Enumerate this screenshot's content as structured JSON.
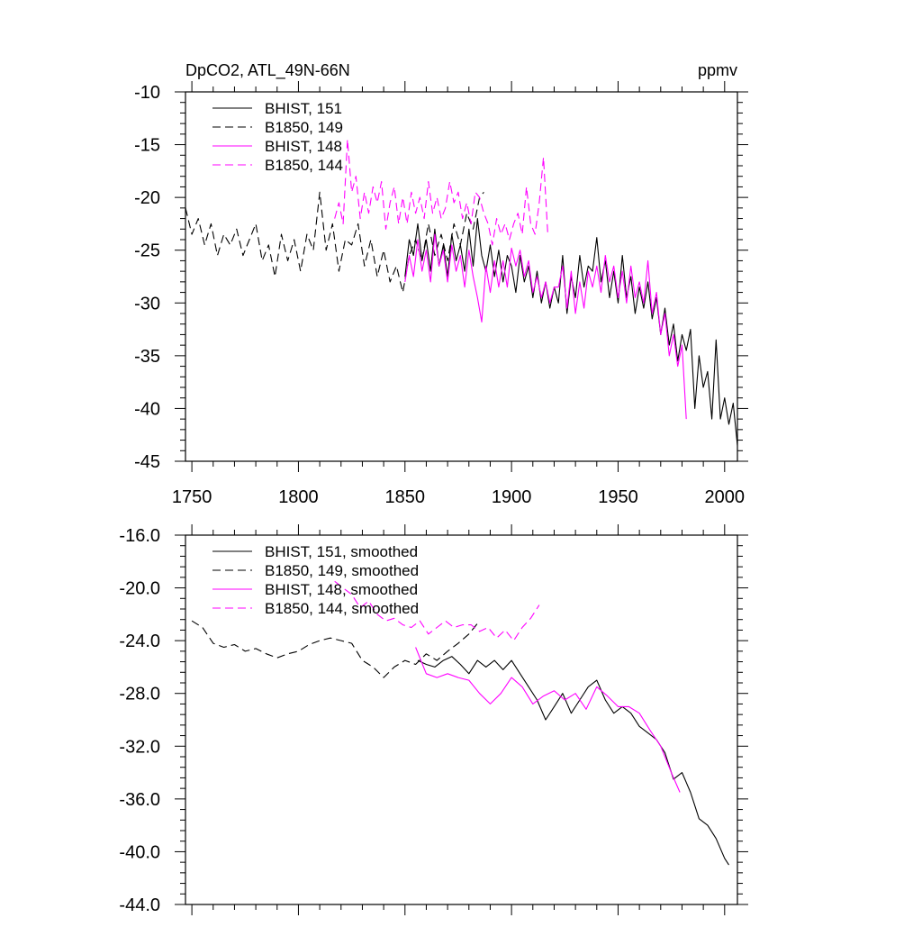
{
  "chart_data": [
    {
      "type": "line",
      "title": "DpCO2, ATL_49N-66N",
      "units": "ppmv",
      "xlim": [
        1747,
        2006
      ],
      "ylim": [
        -45,
        -10
      ],
      "xticks": [
        1750,
        1800,
        1850,
        1900,
        1950,
        2000
      ],
      "xtick_labels": [
        "1750",
        "1800",
        "1850",
        "1900",
        "1950",
        "2000"
      ],
      "yticks": [
        -10,
        -15,
        -20,
        -25,
        -30,
        -35,
        -40,
        -45
      ],
      "ytick_labels": [
        "-10",
        "-15",
        "-20",
        "-25",
        "-30",
        "-35",
        "-40",
        "-45"
      ],
      "legend_placement": "top-left",
      "series": [
        {
          "name": "BHIST, 151",
          "color": "#000000",
          "dash": "solid",
          "x": [
            1850,
            1852,
            1854,
            1856,
            1858,
            1860,
            1862,
            1864,
            1866,
            1868,
            1870,
            1872,
            1874,
            1876,
            1878,
            1880,
            1882,
            1884,
            1886,
            1888,
            1890,
            1892,
            1894,
            1896,
            1898,
            1900,
            1902,
            1904,
            1906,
            1908,
            1910,
            1912,
            1914,
            1916,
            1918,
            1920,
            1922,
            1924,
            1926,
            1928,
            1930,
            1932,
            1934,
            1936,
            1938,
            1940,
            1942,
            1944,
            1946,
            1948,
            1950,
            1952,
            1954,
            1956,
            1958,
            1960,
            1962,
            1964,
            1966,
            1968,
            1970,
            1972,
            1974,
            1976,
            1978,
            1980,
            1982,
            1984,
            1986,
            1988,
            1990,
            1992,
            1994,
            1996,
            1998,
            2000,
            2002,
            2004,
            2006
          ],
          "values": [
            -27.5,
            -24.0,
            -25.5,
            -22.5,
            -26.0,
            -24.0,
            -27.0,
            -23.0,
            -26.5,
            -24.5,
            -27.5,
            -23.5,
            -26.0,
            -24.5,
            -27.0,
            -23.0,
            -26.5,
            -22.0,
            -25.5,
            -27.0,
            -24.5,
            -27.5,
            -25.0,
            -28.0,
            -25.5,
            -26.5,
            -29.0,
            -25.5,
            -28.0,
            -26.5,
            -29.5,
            -27.0,
            -30.0,
            -28.0,
            -30.5,
            -28.5,
            -30.0,
            -25.5,
            -31.0,
            -27.5,
            -29.5,
            -25.5,
            -28.5,
            -26.5,
            -27.0,
            -23.8,
            -28.0,
            -26.0,
            -29.5,
            -27.0,
            -30.0,
            -25.5,
            -29.5,
            -27.5,
            -31.0,
            -28.5,
            -30.5,
            -28.0,
            -31.5,
            -29.5,
            -33.0,
            -30.5,
            -34.0,
            -32.0,
            -35.5,
            -33.0,
            -34.5,
            -32.5,
            -40.0,
            -35.0,
            -38.0,
            -36.5,
            -41.0,
            -33.5,
            -41.0,
            -39.0,
            -41.5,
            -39.5,
            -43.5
          ]
        },
        {
          "name": "B1850, 149",
          "color": "#000000",
          "dash": "dashed",
          "x": [
            1747,
            1750,
            1753,
            1756,
            1759,
            1762,
            1765,
            1768,
            1771,
            1774,
            1777,
            1780,
            1783,
            1786,
            1789,
            1792,
            1795,
            1798,
            1801,
            1804,
            1807,
            1810,
            1813,
            1816,
            1819,
            1822,
            1825,
            1828,
            1831,
            1834,
            1837,
            1840,
            1843,
            1846,
            1849,
            1852,
            1855,
            1858,
            1861,
            1864,
            1867,
            1870,
            1873,
            1876,
            1879,
            1882,
            1885,
            1887
          ],
          "values": [
            -21.0,
            -23.5,
            -22.0,
            -24.5,
            -22.5,
            -25.5,
            -23.5,
            -24.5,
            -23.0,
            -25.5,
            -24.0,
            -22.5,
            -26.0,
            -24.5,
            -27.5,
            -23.5,
            -26.0,
            -24.0,
            -27.0,
            -23.5,
            -25.0,
            -19.5,
            -25.0,
            -22.5,
            -27.0,
            -24.0,
            -24.5,
            -22.5,
            -26.5,
            -24.0,
            -27.5,
            -25.0,
            -28.0,
            -26.5,
            -29.0,
            -25.5,
            -24.0,
            -26.0,
            -22.5,
            -25.5,
            -23.5,
            -26.0,
            -22.5,
            -24.5,
            -21.5,
            -23.0,
            -20.0,
            -19.5
          ]
        },
        {
          "name": "BHIST, 148",
          "color": "#ff00ff",
          "dash": "solid",
          "x": [
            1850,
            1852,
            1854,
            1856,
            1858,
            1860,
            1862,
            1864,
            1866,
            1868,
            1870,
            1872,
            1874,
            1876,
            1878,
            1880,
            1882,
            1884,
            1886,
            1888,
            1890,
            1892,
            1894,
            1896,
            1898,
            1900,
            1902,
            1904,
            1906,
            1908,
            1910,
            1912,
            1914,
            1916,
            1918,
            1920,
            1922,
            1924,
            1926,
            1928,
            1930,
            1932,
            1934,
            1936,
            1938,
            1940,
            1942,
            1944,
            1946,
            1948,
            1950,
            1952,
            1954,
            1956,
            1958,
            1960,
            1962,
            1964,
            1966,
            1968,
            1970,
            1972,
            1974,
            1976,
            1978,
            1980,
            1982
          ],
          "values": [
            -28.0,
            -25.5,
            -27.5,
            -24.0,
            -27.0,
            -25.0,
            -28.0,
            -23.5,
            -26.5,
            -25.0,
            -28.0,
            -24.5,
            -27.0,
            -25.5,
            -28.5,
            -25.0,
            -27.5,
            -29.5,
            -31.8,
            -26.5,
            -29.0,
            -26.0,
            -28.5,
            -26.0,
            -28.5,
            -24.8,
            -26.5,
            -25.0,
            -27.5,
            -26.0,
            -29.0,
            -27.5,
            -29.5,
            -28.0,
            -30.0,
            -28.5,
            -28.5,
            -26.5,
            -30.5,
            -27.0,
            -31.0,
            -28.0,
            -30.5,
            -27.0,
            -28.5,
            -26.5,
            -29.0,
            -25.5,
            -28.0,
            -26.5,
            -29.5,
            -27.0,
            -30.0,
            -26.5,
            -29.5,
            -28.0,
            -30.0,
            -26.0,
            -31.0,
            -29.0,
            -33.0,
            -31.0,
            -35.0,
            -33.0,
            -36.0,
            -34.0,
            -41.0
          ]
        },
        {
          "name": "B1850, 144",
          "color": "#ff00ff",
          "dash": "dashed",
          "x": [
            1817,
            1819,
            1821,
            1823,
            1825,
            1827,
            1829,
            1831,
            1833,
            1835,
            1837,
            1839,
            1841,
            1843,
            1845,
            1847,
            1849,
            1851,
            1853,
            1855,
            1857,
            1859,
            1861,
            1863,
            1865,
            1867,
            1869,
            1871,
            1873,
            1875,
            1877,
            1879,
            1881,
            1883,
            1885,
            1887,
            1889,
            1891,
            1893,
            1895,
            1897,
            1899,
            1901,
            1903,
            1905,
            1907,
            1909,
            1911,
            1913,
            1915,
            1917
          ],
          "values": [
            -22.0,
            -20.5,
            -22.5,
            -14.5,
            -19.5,
            -18.0,
            -22.0,
            -19.5,
            -21.5,
            -19.0,
            -20.5,
            -18.5,
            -23.0,
            -20.5,
            -19.0,
            -22.5,
            -20.0,
            -22.5,
            -19.5,
            -21.5,
            -20.0,
            -22.0,
            -18.5,
            -21.5,
            -20.0,
            -22.0,
            -21.0,
            -18.5,
            -20.5,
            -19.5,
            -22.0,
            -20.5,
            -22.5,
            -19.5,
            -20.0,
            -21.5,
            -22.5,
            -24.5,
            -22.0,
            -23.5,
            -22.5,
            -24.0,
            -22.5,
            -21.5,
            -23.5,
            -19.0,
            -22.5,
            -23.5,
            -20.5,
            -16.2,
            -23.5
          ]
        }
      ]
    },
    {
      "type": "line",
      "ylim": [
        -44,
        -16
      ],
      "xlim": [
        1747,
        2006
      ],
      "xticks": [
        1750,
        1800,
        1850,
        1900,
        1950,
        2000
      ],
      "yticks": [
        -16.0,
        -20.0,
        -24.0,
        -28.0,
        -32.0,
        -36.0,
        -40.0,
        -44.0
      ],
      "ytick_labels": [
        "-16.0",
        "-20.0",
        "-24.0",
        "-28.0",
        "-32.0",
        "-36.0",
        "-40.0",
        "-44.0"
      ],
      "legend_placement": "top-left",
      "series": [
        {
          "name": "BHIST, 151, smoothed",
          "color": "#000000",
          "dash": "solid",
          "x": [
            1856,
            1860,
            1864,
            1868,
            1872,
            1876,
            1880,
            1884,
            1888,
            1892,
            1896,
            1900,
            1904,
            1908,
            1912,
            1916,
            1920,
            1924,
            1928,
            1932,
            1936,
            1940,
            1944,
            1948,
            1952,
            1956,
            1960,
            1964,
            1968,
            1972,
            1976,
            1980,
            1984,
            1988,
            1992,
            1996,
            2000,
            2002
          ],
          "values": [
            -25.5,
            -25.8,
            -26.0,
            -25.5,
            -25.2,
            -25.8,
            -26.5,
            -25.5,
            -26.0,
            -25.5,
            -26.2,
            -25.5,
            -26.5,
            -27.5,
            -28.5,
            -30.0,
            -29.0,
            -28.0,
            -29.5,
            -28.5,
            -27.5,
            -27.0,
            -28.5,
            -29.5,
            -29.0,
            -29.5,
            -30.5,
            -31.0,
            -31.5,
            -32.5,
            -34.5,
            -34.0,
            -35.5,
            -37.5,
            -38.0,
            -39.0,
            -40.5,
            -41.0
          ]
        },
        {
          "name": "B1850, 149, smoothed",
          "color": "#000000",
          "dash": "dashed",
          "x": [
            1750,
            1755,
            1760,
            1765,
            1770,
            1775,
            1780,
            1785,
            1790,
            1795,
            1800,
            1805,
            1810,
            1815,
            1820,
            1825,
            1830,
            1835,
            1840,
            1845,
            1850,
            1855,
            1860,
            1865,
            1870,
            1875,
            1880,
            1885
          ],
          "values": [
            -22.5,
            -23.0,
            -24.2,
            -24.5,
            -24.3,
            -24.8,
            -24.6,
            -25.0,
            -25.3,
            -25.0,
            -24.8,
            -24.3,
            -24.0,
            -23.8,
            -24.0,
            -24.2,
            -25.5,
            -26.0,
            -26.8,
            -26.0,
            -25.5,
            -25.8,
            -25.0,
            -25.5,
            -24.8,
            -24.2,
            -23.5,
            -22.5
          ]
        },
        {
          "name": "BHIST, 148, smoothed",
          "color": "#ff00ff",
          "dash": "solid",
          "x": [
            1855,
            1860,
            1865,
            1870,
            1875,
            1880,
            1885,
            1890,
            1895,
            1900,
            1905,
            1910,
            1915,
            1920,
            1925,
            1930,
            1935,
            1940,
            1945,
            1950,
            1955,
            1960,
            1965,
            1970,
            1975,
            1979
          ],
          "values": [
            -24.5,
            -26.5,
            -26.8,
            -26.5,
            -26.8,
            -27.0,
            -28.0,
            -28.8,
            -28.0,
            -26.8,
            -27.5,
            -28.8,
            -28.2,
            -27.8,
            -28.5,
            -28.0,
            -29.2,
            -27.5,
            -28.2,
            -29.0,
            -29.0,
            -29.5,
            -30.8,
            -32.0,
            -34.0,
            -35.5
          ]
        },
        {
          "name": "B1850, 144, smoothed",
          "color": "#ff00ff",
          "dash": "dashed",
          "x": [
            1817,
            1821,
            1825,
            1829,
            1833,
            1837,
            1841,
            1845,
            1849,
            1853,
            1857,
            1861,
            1865,
            1869,
            1873,
            1877,
            1881,
            1885,
            1889,
            1893,
            1897,
            1901,
            1905,
            1909,
            1913
          ],
          "values": [
            -19.5,
            -20.0,
            -20.5,
            -21.5,
            -21.0,
            -22.0,
            -22.5,
            -22.3,
            -22.8,
            -23.0,
            -22.5,
            -23.5,
            -23.0,
            -22.5,
            -23.0,
            -22.8,
            -22.8,
            -23.3,
            -23.0,
            -23.8,
            -23.2,
            -24.0,
            -23.0,
            -22.3,
            -21.3
          ]
        }
      ]
    }
  ]
}
